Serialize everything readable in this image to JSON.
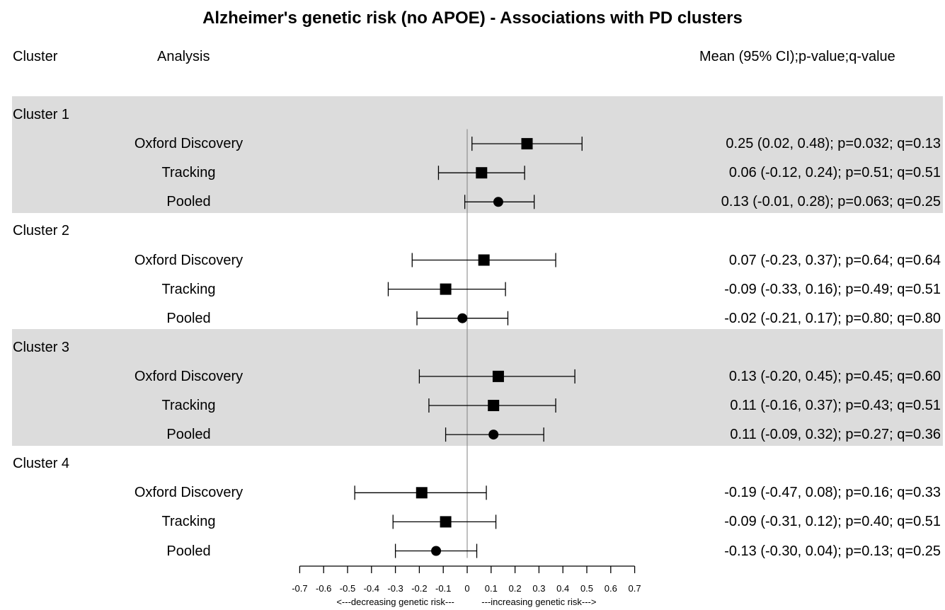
{
  "chart_data": {
    "type": "forest",
    "title": "Alzheimer's genetic risk (no APOE) - Associations with PD clusters",
    "headers": {
      "cluster": "Cluster",
      "analysis": "Analysis",
      "stats": "Mean (95% CI);p-value;q-value"
    },
    "x_ticks": [
      "-0.7",
      "-0.6",
      "-0.5",
      "-0.4",
      "-0.3",
      "-0.2",
      "-0.1",
      "0",
      "0.1",
      "0.2",
      "0.3",
      "0.4",
      "0.5",
      "0.6",
      "0.7"
    ],
    "xlim": [
      -0.7,
      0.7
    ],
    "x_direction_labels": {
      "left": "<---decreasing genetic risk---",
      "right": "---increasing genetic risk--->"
    },
    "groups": [
      {
        "label": "Cluster 1",
        "shaded": true,
        "rows": [
          {
            "analysis": "Oxford Discovery",
            "estimate": 0.25,
            "lower": 0.02,
            "upper": 0.48,
            "marker": "square",
            "stats": "0.25 (0.02, 0.48); p=0.032; q=0.13"
          },
          {
            "analysis": "Tracking",
            "estimate": 0.06,
            "lower": -0.12,
            "upper": 0.24,
            "marker": "square",
            "stats": "0.06 (-0.12, 0.24); p=0.51; q=0.51"
          },
          {
            "analysis": "Pooled",
            "estimate": 0.13,
            "lower": -0.01,
            "upper": 0.28,
            "marker": "circle",
            "stats": "0.13 (-0.01, 0.28); p=0.063; q=0.25"
          }
        ]
      },
      {
        "label": "Cluster 2",
        "shaded": false,
        "rows": [
          {
            "analysis": "Oxford Discovery",
            "estimate": 0.07,
            "lower": -0.23,
            "upper": 0.37,
            "marker": "square",
            "stats": "0.07 (-0.23, 0.37); p=0.64; q=0.64"
          },
          {
            "analysis": "Tracking",
            "estimate": -0.09,
            "lower": -0.33,
            "upper": 0.16,
            "marker": "square",
            "stats": "-0.09 (-0.33, 0.16); p=0.49; q=0.51"
          },
          {
            "analysis": "Pooled",
            "estimate": -0.02,
            "lower": -0.21,
            "upper": 0.17,
            "marker": "circle",
            "stats": "-0.02 (-0.21, 0.17); p=0.80; q=0.80"
          }
        ]
      },
      {
        "label": "Cluster 3",
        "shaded": true,
        "rows": [
          {
            "analysis": "Oxford Discovery",
            "estimate": 0.13,
            "lower": -0.2,
            "upper": 0.45,
            "marker": "square",
            "stats": "0.13 (-0.20, 0.45); p=0.45; q=0.60"
          },
          {
            "analysis": "Tracking",
            "estimate": 0.11,
            "lower": -0.16,
            "upper": 0.37,
            "marker": "square",
            "stats": "0.11 (-0.16, 0.37); p=0.43; q=0.51"
          },
          {
            "analysis": "Pooled",
            "estimate": 0.11,
            "lower": -0.09,
            "upper": 0.32,
            "marker": "circle",
            "stats": "0.11 (-0.09, 0.32); p=0.27; q=0.36"
          }
        ]
      },
      {
        "label": "Cluster 4",
        "shaded": false,
        "rows": [
          {
            "analysis": "Oxford Discovery",
            "estimate": -0.19,
            "lower": -0.47,
            "upper": 0.08,
            "marker": "square",
            "stats": "-0.19 (-0.47, 0.08); p=0.16; q=0.33"
          },
          {
            "analysis": "Tracking",
            "estimate": -0.09,
            "lower": -0.31,
            "upper": 0.12,
            "marker": "square",
            "stats": "-0.09 (-0.31, 0.12); p=0.40; q=0.51"
          },
          {
            "analysis": "Pooled",
            "estimate": -0.13,
            "lower": -0.3,
            "upper": 0.04,
            "marker": "circle",
            "stats": "-0.13 (-0.30, 0.04); p=0.13; q=0.25"
          }
        ]
      }
    ],
    "colors": {
      "band": "#dcdcdc",
      "ink": "#000000",
      "zero_line": "#808080"
    }
  }
}
